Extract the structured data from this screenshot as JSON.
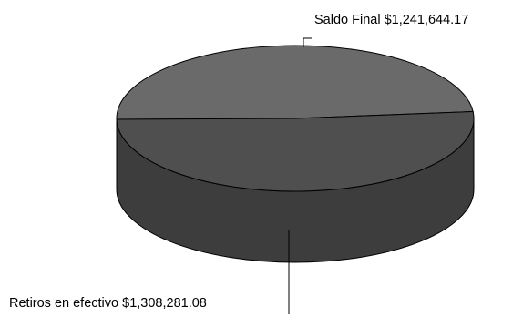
{
  "chart_data": {
    "type": "pie",
    "title": "",
    "slices": [
      {
        "label": "Saldo Final",
        "value_text": "$1,241,644.17",
        "value": 1241644.17
      },
      {
        "label": "Retiros en efectivo",
        "value_text": "$1,308,281.08",
        "value": 1308281.08
      }
    ],
    "style": "3d",
    "colors": {
      "top_light": "#6a6a6a",
      "top_dark": "#4f4f4f",
      "side": "#3d3d3d",
      "edge": "#000000"
    }
  }
}
